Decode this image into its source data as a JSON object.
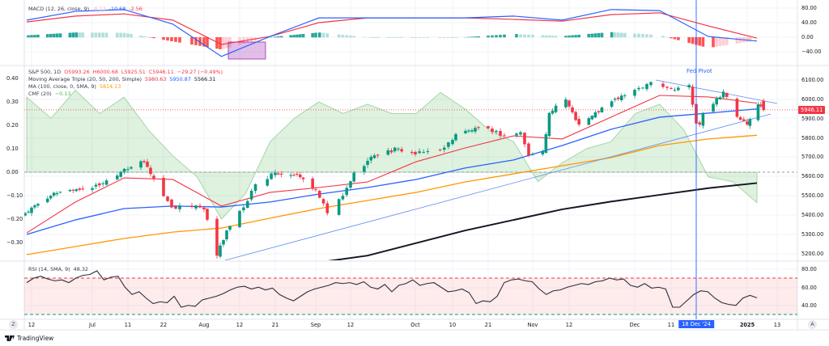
{
  "legend": {
    "macd": {
      "title": "MACD (12, 26, close, 9)",
      "hist": "-8.13",
      "macd": "-10.68",
      "signal": "-2.56"
    },
    "price": {
      "symbol": "S&P 500, 1D",
      "open": "O5993.26",
      "high": "H6000.68",
      "low": "L5925.51",
      "close": "C5946.11",
      "change": "−29.27 (−0.49%)"
    },
    "mat": {
      "title": "Moving Average Triple (20, 50, 200, Simple)",
      "ma20": "5980.63",
      "ma50": "5950.87",
      "ma200": "5566.31"
    },
    "ma100": {
      "title": "MA (100, close, 0, SMA, 9)",
      "value": "5814.13"
    },
    "cmf": {
      "title": "CMF (20)",
      "value": "−0.13"
    },
    "rsi": {
      "title": "RSI (14, SMA, 9)",
      "value": "48.32"
    }
  },
  "annotation": {
    "fed_pivot": "Fed Pivot",
    "date_badge": "18 Dec '24"
  },
  "current_price_label": "5946.11",
  "right_axis": {
    "macd": [
      "80.00",
      "40.00",
      "0.00",
      "−40.00"
    ],
    "price": [
      "6100.00",
      "6000.00",
      "5900.00",
      "5800.00",
      "5700.00",
      "5600.00",
      "5500.00",
      "5400.00",
      "5300.00",
      "5200.00"
    ],
    "rsi": [
      "80.00",
      "60.00",
      "40.00"
    ]
  },
  "left_axis": {
    "cmf": [
      "0.40",
      "0.30",
      "0.20",
      "0.10",
      "0.00",
      "−0.10",
      "−0.20",
      "−0.30"
    ]
  },
  "x_axis": [
    "12",
    "Jul",
    "11",
    "22",
    "Aug",
    "12",
    "21",
    "Sep",
    "12",
    "Oct",
    "10",
    "21",
    "Nov",
    "12",
    "Dec",
    "11",
    "2025",
    "13"
  ],
  "buttons": {
    "zoom": "Z",
    "auto": "A"
  },
  "brand": "TradingView",
  "colors": {
    "up": "#089981",
    "down": "#f23645",
    "ma20": "#f23645",
    "ma50": "#2962ff",
    "ma100": "#ff9800",
    "ma200": "#131722",
    "cmf": "#a5d6a7",
    "macd": "#2962ff",
    "signal": "#f23645",
    "fed_line": "#2962ff"
  },
  "chart_data": {
    "type": "candlestick",
    "range": [
      "2024-06-10",
      "2025-01-08"
    ],
    "price_ylim": [
      5170,
      6160
    ],
    "close_keypoints": [
      [
        "2024-06-10",
        5410
      ],
      [
        "2024-06-18",
        5500
      ],
      [
        "2024-06-24",
        5530
      ],
      [
        "2024-07-01",
        5540
      ],
      [
        "2024-07-05",
        5580
      ],
      [
        "2024-07-10",
        5640
      ],
      [
        "2024-07-16",
        5675
      ],
      [
        "2024-07-19",
        5590
      ],
      [
        "2024-07-24",
        5440
      ],
      [
        "2024-07-30",
        5450
      ],
      [
        "2024-08-01",
        5430
      ],
      [
        "2024-08-05",
        5190
      ],
      [
        "2024-08-08",
        5320
      ],
      [
        "2024-08-13",
        5440
      ],
      [
        "2024-08-16",
        5560
      ],
      [
        "2024-08-21",
        5620
      ],
      [
        "2024-08-28",
        5610
      ],
      [
        "2024-09-03",
        5530
      ],
      [
        "2024-09-06",
        5410
      ],
      [
        "2024-09-10",
        5500
      ],
      [
        "2024-09-13",
        5620
      ],
      [
        "2024-09-19",
        5710
      ],
      [
        "2024-09-26",
        5745
      ],
      [
        "2024-10-01",
        5715
      ],
      [
        "2024-10-08",
        5750
      ],
      [
        "2024-10-11",
        5820
      ],
      [
        "2024-10-16",
        5840
      ],
      [
        "2024-10-21",
        5850
      ],
      [
        "2024-10-25",
        5810
      ],
      [
        "2024-10-29",
        5830
      ],
      [
        "2024-10-31",
        5710
      ],
      [
        "2024-11-04",
        5730
      ],
      [
        "2024-11-06",
        5930
      ],
      [
        "2024-11-11",
        6000
      ],
      [
        "2024-11-15",
        5870
      ],
      [
        "2024-11-19",
        5915
      ],
      [
        "2024-11-25",
        5990
      ],
      [
        "2024-12-02",
        6050
      ],
      [
        "2024-12-06",
        6090
      ],
      [
        "2024-12-12",
        6050
      ],
      [
        "2024-12-16",
        6075
      ],
      [
        "2024-12-18",
        5875
      ],
      [
        "2024-12-19",
        5870
      ],
      [
        "2024-12-20",
        5930
      ],
      [
        "2024-12-26",
        6040
      ],
      [
        "2024-12-30",
        5910
      ],
      [
        "2025-01-02",
        5870
      ],
      [
        "2025-01-06",
        5975
      ],
      [
        "2025-01-08",
        5946
      ]
    ],
    "ma20": [
      5308,
      5468,
      5593,
      5585,
      5447,
      5518,
      5543,
      5572,
      5677,
      5748,
      5811,
      5795,
      5908,
      6021,
      6013,
      5980.63
    ],
    "ma50": [
      5300,
      5375,
      5434,
      5447,
      5442,
      5468,
      5509,
      5543,
      5585,
      5644,
      5686,
      5761,
      5845,
      5908,
      5929,
      5950.87
    ],
    "ma100": [
      5195,
      5237,
      5279,
      5312,
      5333,
      5384,
      5434,
      5476,
      5518,
      5572,
      5614,
      5656,
      5698,
      5761,
      5795,
      5814.13
    ],
    "ma200": [
      null,
      null,
      null,
      null,
      null,
      null,
      5155,
      5190,
      5255,
      5320,
      5375,
      5430,
      5470,
      5505,
      5540,
      5566.31
    ],
    "cmf": [
      0.32,
      0.23,
      0.35,
      0.25,
      0.32,
      0.18,
      0.07,
      -0.02,
      -0.2,
      -0.09,
      0.13,
      0.23,
      0.3,
      0.25,
      0.29,
      0.25,
      0.25,
      0.34,
      0.27,
      0.18,
      0.13,
      -0.04,
      0.04,
      0.1,
      0.13,
      0.25,
      0.29,
      0.18,
      -0.02,
      -0.04,
      -0.13
    ],
    "cmf_ylim": [
      -0.35,
      0.45
    ],
    "macd": [
      47,
      71,
      76,
      36,
      -53,
      2,
      53,
      53,
      53,
      53,
      58,
      47,
      76,
      73,
      2,
      -10.68
    ],
    "signal": [
      42,
      58,
      64,
      47,
      -20,
      2,
      40,
      53,
      53,
      53,
      49,
      44,
      62,
      67,
      31,
      -2.56
    ],
    "macd_ylim": [
      -60,
      90
    ],
    "rsi": [
      65,
      70,
      72,
      69,
      67,
      68,
      65,
      70,
      73,
      74,
      78,
      68,
      71,
      72,
      60,
      52,
      55,
      48,
      42,
      44,
      43,
      50,
      38,
      40,
      39,
      46,
      48,
      50,
      53,
      57,
      60,
      61,
      58,
      60,
      57,
      59,
      52,
      48,
      45,
      50,
      55,
      58,
      60,
      62,
      65,
      64,
      65,
      63,
      66,
      60,
      58,
      63,
      55,
      62,
      64,
      68,
      62,
      64,
      65,
      60,
      55,
      56,
      58,
      54,
      42,
      45,
      44,
      50,
      65,
      68,
      69,
      67,
      66,
      58,
      52,
      56,
      57,
      60,
      62,
      64,
      63,
      66,
      67,
      70,
      68,
      69,
      62,
      60,
      64,
      59,
      60,
      58,
      38,
      38,
      45,
      52,
      56,
      55,
      48,
      43,
      41,
      40,
      48,
      51,
      48.32
    ],
    "rsi_bands": [
      70,
      30
    ],
    "trendlines": "two ascending/descending support-resistance lines",
    "event": {
      "date": "2024-12-18",
      "label": "Fed Pivot"
    }
  }
}
